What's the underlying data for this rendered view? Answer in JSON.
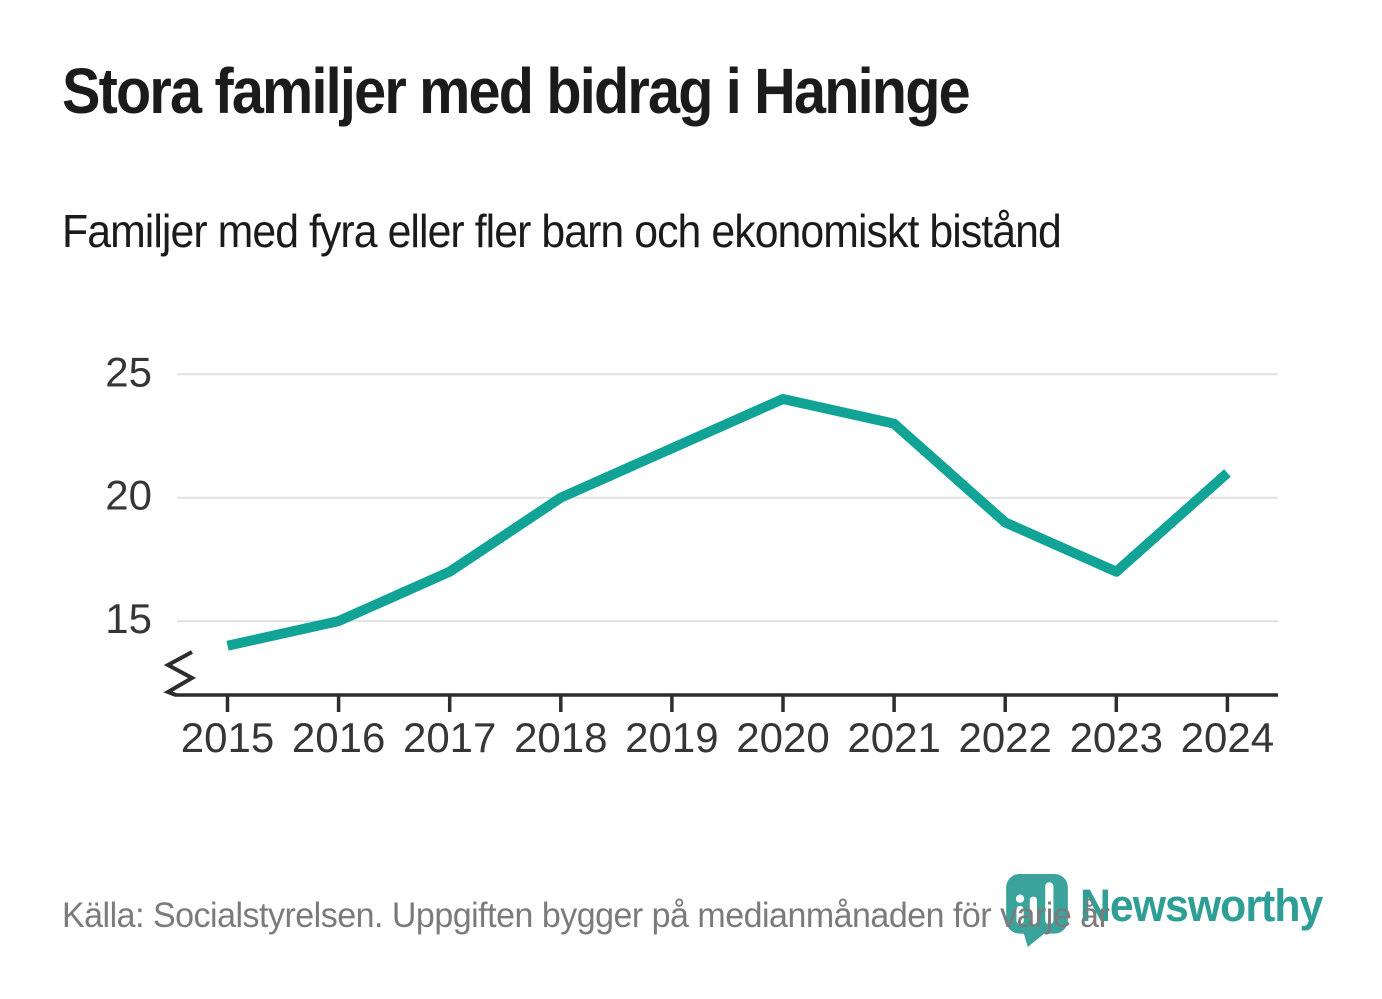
{
  "header": {
    "title": "Stora familjer med bidrag i Haninge",
    "subtitle": "Familjer med fyra eller fler barn och ekonomiskt bistånd"
  },
  "footer": {
    "source": "Källa: Socialstyrelsen. Uppgiften bygger på medianmånaden för varje år",
    "brand_name": "Newsworthy",
    "brand_color": "#2f9e97",
    "brand_icon": "newsworthy-pin-barchart-icon"
  },
  "chart_data": {
    "type": "line",
    "title": "Stora familjer med bidrag i Haninge",
    "subtitle": "Familjer med fyra eller fler barn och ekonomiskt bistånd",
    "x": [
      "2015",
      "2016",
      "2017",
      "2018",
      "2019",
      "2020",
      "2021",
      "2022",
      "2023",
      "2024"
    ],
    "series": [
      {
        "name": "Familjer med fyra eller fler barn och ekonomiskt bistånd",
        "values": [
          14,
          15,
          17,
          20,
          22,
          24,
          23,
          19,
          17,
          21
        ]
      }
    ],
    "yticks": [
      15,
      20,
      25
    ],
    "ylim": [
      13,
      26
    ],
    "axis_break": true,
    "grid": true,
    "legend": "none",
    "line_color": "#10a396",
    "grid_color": "#e1e1e1",
    "axis_color": "#2d2d2d",
    "tick_label_color": "#363636"
  }
}
